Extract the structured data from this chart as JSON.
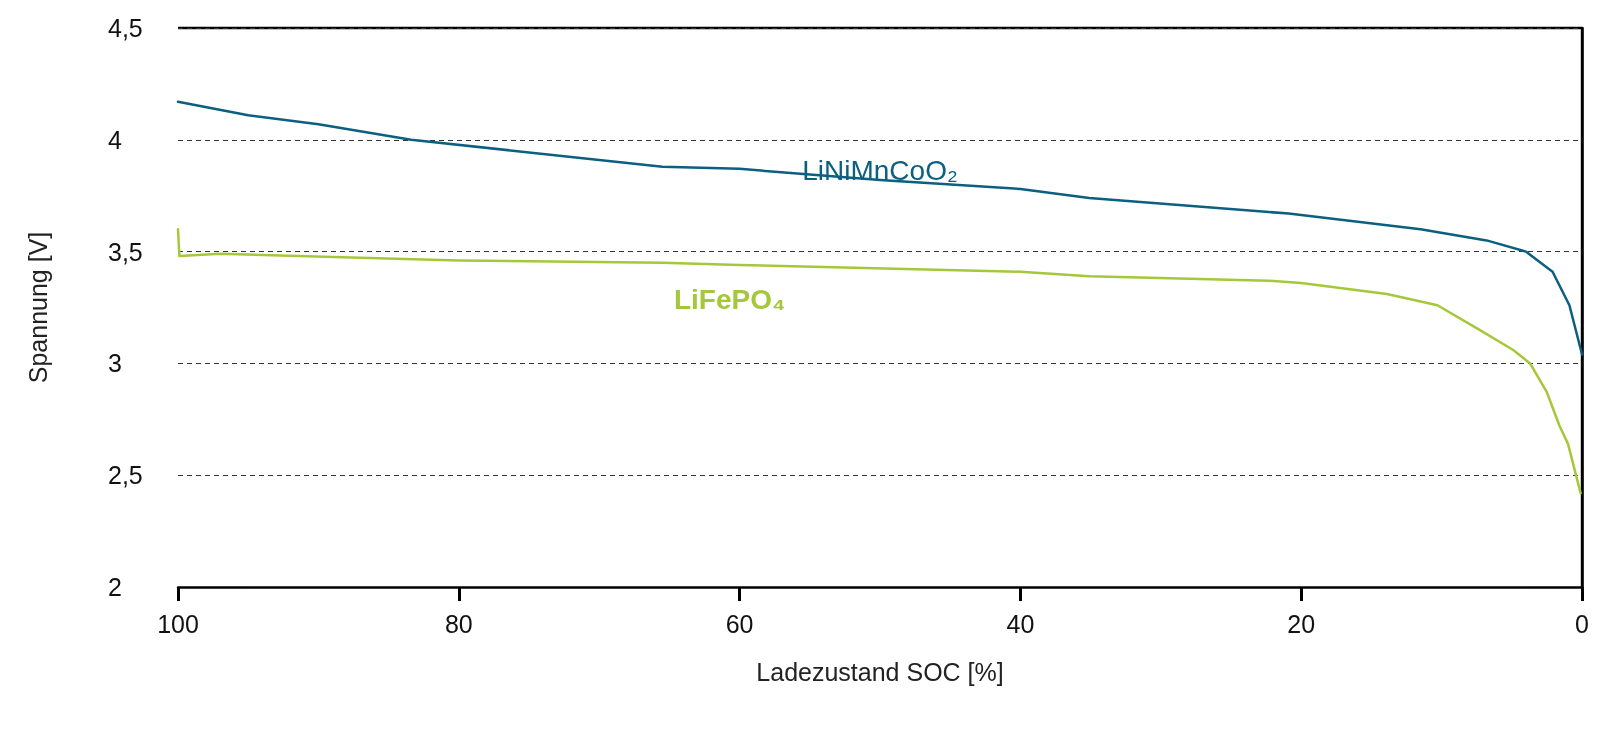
{
  "chart_data": {
    "type": "line",
    "xlabel": "Ladezustand SOC [%]",
    "ylabel": "Spannung [V]",
    "xlim": [
      100,
      0
    ],
    "xticks": [
      100,
      80,
      60,
      40,
      20,
      0
    ],
    "ylim": [
      2,
      4.5
    ],
    "yticks": [
      2,
      {
        "value": 2.5,
        "label": "2,5"
      },
      3,
      {
        "value": 3.5,
        "label": "3,5"
      },
      4,
      {
        "value": 4.5,
        "label": "4,5"
      }
    ],
    "grid": "y",
    "legend": false,
    "marker": "none",
    "line_style": "solid",
    "series": [
      {
        "name": "LiNiMnCoO₂",
        "color": "#0b5f7f",
        "x": [
          100,
          95,
          90,
          83.4,
          70,
          65.5,
          60,
          50,
          40,
          35.1,
          20.9,
          11.5,
          6.8,
          4,
          2.1,
          0.9,
          0
        ],
        "values": [
          4.17,
          4.11,
          4.07,
          4.0,
          3.91,
          3.88,
          3.87,
          3.82,
          3.78,
          3.74,
          3.67,
          3.6,
          3.55,
          3.5,
          3.41,
          3.26,
          3.04
        ]
      },
      {
        "name": "LiFePO₄",
        "color": "#a5c83a",
        "x": [
          100,
          99.9,
          97,
          80,
          65.5,
          60,
          40,
          35.1,
          22.3,
          20,
          13.9,
          10.3,
          7.3,
          4.9,
          3.7,
          2.5,
          1.6,
          1,
          0.1
        ],
        "values": [
          3.6,
          3.48,
          3.49,
          3.46,
          3.45,
          3.44,
          3.41,
          3.39,
          3.37,
          3.36,
          3.31,
          3.26,
          3.15,
          3.06,
          3.0,
          2.87,
          2.72,
          2.64,
          2.42
        ]
      }
    ]
  }
}
